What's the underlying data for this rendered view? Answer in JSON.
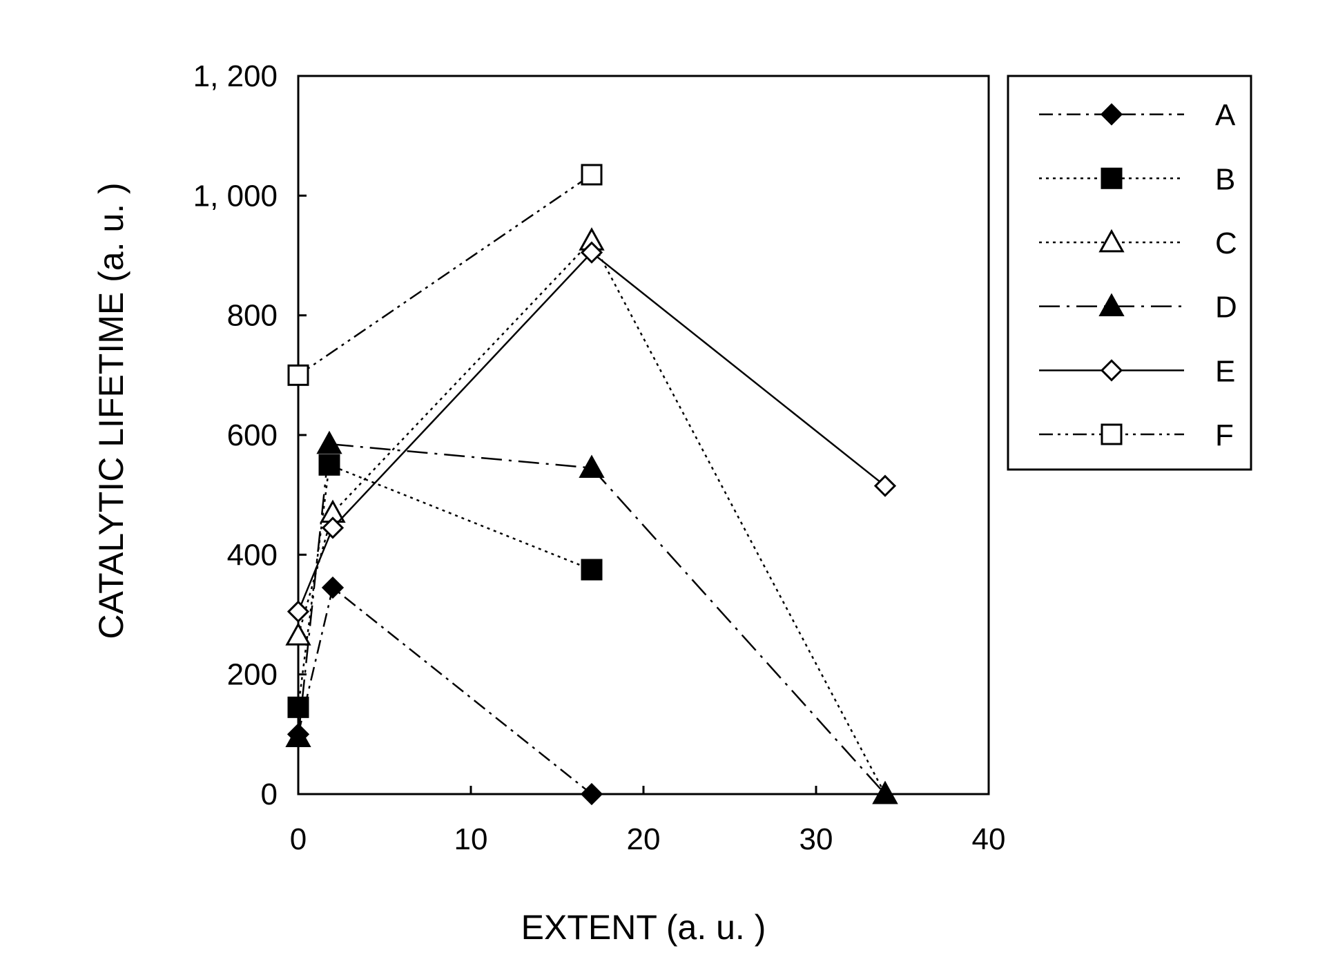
{
  "chart_data": {
    "type": "line",
    "title": "",
    "xlabel": "EXTENT (a. u. )",
    "ylabel": "CATALYTIC LIFETIME (a. u. )",
    "xlim": [
      0,
      40
    ],
    "ylim": [
      0,
      1200
    ],
    "xticks": [
      "0",
      "10",
      "20",
      "30",
      "40"
    ],
    "yticks": [
      "0",
      "200",
      "400",
      "600",
      "800",
      "1, 000",
      "1, 200"
    ],
    "grid": false,
    "legend_position": "right",
    "series": [
      {
        "name": "A",
        "marker": "filled-diamond",
        "line_style": "dash-dot",
        "x": [
          0,
          2,
          17
        ],
        "y": [
          100,
          345,
          0
        ]
      },
      {
        "name": "B",
        "marker": "filled-square",
        "line_style": "dotted",
        "x": [
          0,
          1.8,
          17
        ],
        "y": [
          145,
          550,
          375
        ]
      },
      {
        "name": "C",
        "marker": "open-triangle",
        "line_style": "dotted",
        "x": [
          0,
          2,
          17,
          34
        ],
        "y": [
          265,
          470,
          925,
          0
        ]
      },
      {
        "name": "D",
        "marker": "filled-triangle",
        "line_style": "long-dash-dot",
        "x": [
          0,
          1.8,
          17,
          34
        ],
        "y": [
          95,
          585,
          545,
          0
        ]
      },
      {
        "name": "E",
        "marker": "open-diamond",
        "line_style": "solid",
        "x": [
          0,
          2,
          17,
          34
        ],
        "y": [
          305,
          445,
          905,
          515
        ]
      },
      {
        "name": "F",
        "marker": "open-square",
        "line_style": "dash-dot-dot",
        "x": [
          0,
          17
        ],
        "y": [
          700,
          1035
        ]
      }
    ]
  }
}
